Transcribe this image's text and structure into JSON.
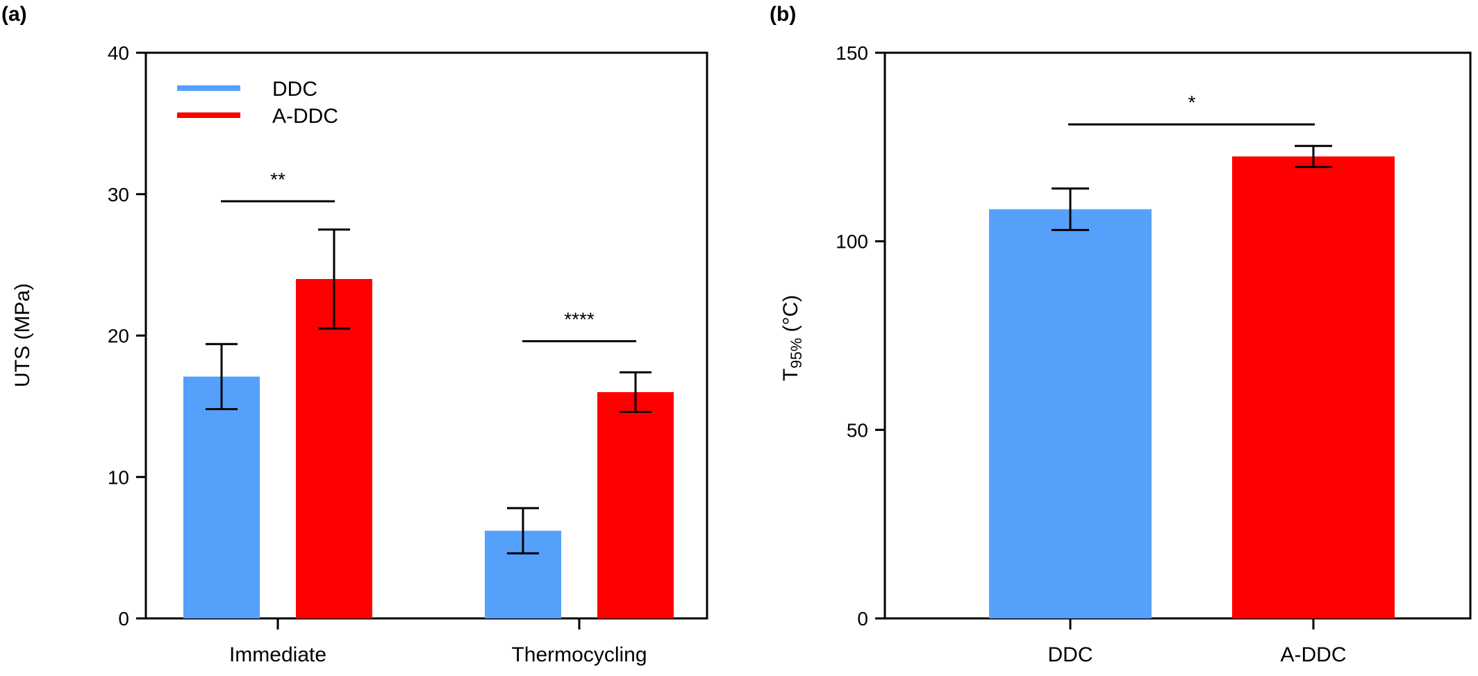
{
  "colors": {
    "ddc": "#55A0FB",
    "addc": "#FF0000",
    "axis": "#000000"
  },
  "chart_data": [
    {
      "panel_label": "(a)",
      "type": "bar",
      "ylabel": "UTS (MPa)",
      "ylim": [
        0,
        40
      ],
      "yticks": [
        "0",
        "10",
        "20",
        "30",
        "40"
      ],
      "categories": [
        "Immediate",
        "Thermocycling"
      ],
      "series": [
        {
          "name": "DDC",
          "values": [
            17.1,
            6.2
          ],
          "errors": [
            2.3,
            1.6
          ]
        },
        {
          "name": "A-DDC",
          "values": [
            24.0,
            16.0
          ],
          "errors": [
            3.5,
            1.4
          ]
        }
      ],
      "legend": {
        "placement": "top-left",
        "entries": [
          "DDC",
          "A-DDC"
        ]
      },
      "significance": [
        {
          "category": "Immediate",
          "label": "**",
          "y": 29.5
        },
        {
          "category": "Thermocycling",
          "label": "****",
          "y": 19.6
        }
      ]
    },
    {
      "panel_label": "(b)",
      "type": "bar",
      "ylabel": "T",
      "ylabel_sub": "95%",
      "ylabel_unit": " (°C)",
      "ylim": [
        0,
        150
      ],
      "yticks": [
        "0",
        "50",
        "100",
        "150"
      ],
      "categories": [
        "DDC",
        "A-DDC"
      ],
      "values": [
        108.5,
        122.5
      ],
      "errors": [
        5.5,
        2.8
      ],
      "significance": [
        {
          "label": "*",
          "y": 131
        }
      ]
    }
  ]
}
